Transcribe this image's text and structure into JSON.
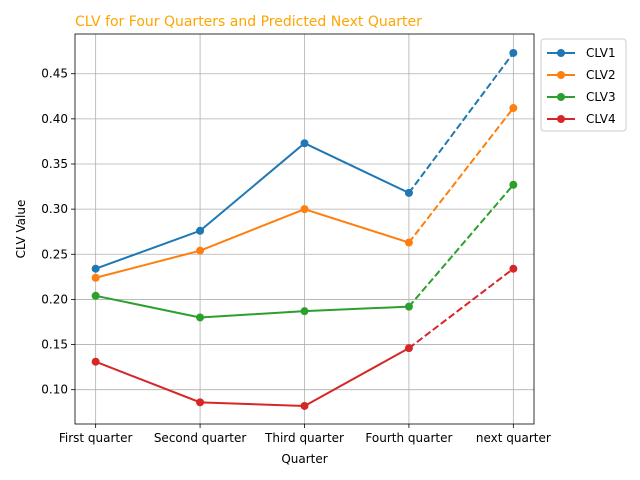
{
  "chart_data": {
    "type": "line",
    "title": "CLV for Four Quarters and Predicted Next Quarter",
    "title_color": "#FFA500",
    "xlabel": "Quarter",
    "ylabel": "CLV Value",
    "categories": [
      "First quarter",
      "Second quarter",
      "Third quarter",
      "Fourth quarter",
      "next quarter"
    ],
    "ylim": [
      0.062,
      0.494
    ],
    "yticks": [
      0.1,
      0.15,
      0.2,
      0.25,
      0.3,
      0.35,
      0.4,
      0.45
    ],
    "ytick_labels": [
      "0.10",
      "0.15",
      "0.20",
      "0.25",
      "0.30",
      "0.35",
      "0.40",
      "0.45"
    ],
    "grid": true,
    "legend_position": "outside upper-right",
    "predicted_segment": "dashed line from Fourth quarter to next quarter",
    "series": [
      {
        "name": "CLV1",
        "color": "#1f77b4",
        "values": [
          0.234,
          0.276,
          0.373,
          0.318,
          0.473
        ]
      },
      {
        "name": "CLV2",
        "color": "#ff7f0e",
        "values": [
          0.224,
          0.254,
          0.3,
          0.263,
          0.412
        ]
      },
      {
        "name": "CLV3",
        "color": "#2ca02c",
        "values": [
          0.204,
          0.18,
          0.187,
          0.192,
          0.327
        ]
      },
      {
        "name": "CLV4",
        "color": "#d62728",
        "values": [
          0.131,
          0.086,
          0.082,
          0.146,
          0.234
        ]
      }
    ]
  }
}
